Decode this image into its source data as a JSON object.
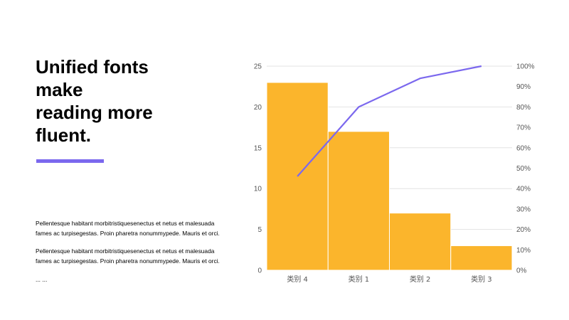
{
  "headline": {
    "lines": [
      "Unified fonts",
      "make",
      "reading more",
      "fluent."
    ]
  },
  "accent_color": "#7b68ee",
  "paragraphs": [
    "Pellentesque habitant morbitristiquesenectus et netus et malesuada fames ac turpisegestas. Proin pharetra nonummypede. Mauris et orci.",
    "Pellentesque habitant morbitristiquesenectus et netus et malesuada fames ac turpisegestas. Proin pharetra nonummypede. Mauris et orci."
  ],
  "ellipsis": "... ...",
  "chart_data": {
    "type": "bar",
    "combo": "pareto",
    "categories": [
      "类别 4",
      "类别 1",
      "类别 2",
      "类别 3"
    ],
    "series": [
      {
        "type": "bar",
        "values": [
          23,
          17,
          7,
          3
        ],
        "axis": "left",
        "color": "#fbb52c"
      },
      {
        "type": "line",
        "values": [
          46,
          80,
          94,
          100
        ],
        "axis": "right",
        "unit": "%",
        "color": "#7b68ee"
      }
    ],
    "ylim": [
      0,
      25
    ],
    "yticks": [
      0,
      5,
      10,
      15,
      20,
      25
    ],
    "y2lim": [
      0,
      100
    ],
    "y2ticks": [
      "0%",
      "10%",
      "20%",
      "30%",
      "40%",
      "50%",
      "60%",
      "70%",
      "80%",
      "90%",
      "100%"
    ],
    "grid": true,
    "title": "",
    "xlabel": "",
    "ylabel": ""
  }
}
